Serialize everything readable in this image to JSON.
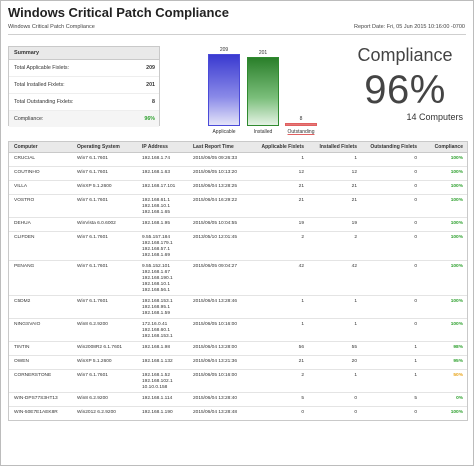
{
  "title": "Windows Critical Patch Compliance",
  "subtitle": "Windows Critical Patch Compliance",
  "report_date": "Report Date:  Fri, 05 Jun 2015 10:16:00 -0700",
  "summary": {
    "header": "Summary",
    "rows": [
      {
        "label": "Total Applicable Fixlets:",
        "value": "209"
      },
      {
        "label": "Total Installed Fixlets:",
        "value": "201"
      },
      {
        "label": "Total Outstanding Fixlets:",
        "value": "8"
      },
      {
        "label": "Compliance:",
        "value": "96%"
      }
    ]
  },
  "chart_data": {
    "type": "bar",
    "categories": [
      "Applicable",
      "Installed",
      "Outstanding"
    ],
    "values": [
      209,
      201,
      8
    ],
    "colors": [
      "#4a4ad8",
      "#2f8a2f",
      "#e06060"
    ],
    "title": "",
    "xlabel": "",
    "ylabel": "",
    "ylim": [
      0,
      209
    ]
  },
  "compliance": {
    "title": "Compliance",
    "value": "96%",
    "count": "14 Computers"
  },
  "table": {
    "headers": [
      "Computer",
      "Operating System",
      "IP Address",
      "Last Report Time",
      "Applicable Fixlets",
      "Installed Fixlets",
      "Outstanding Fixlets",
      "Compliance"
    ],
    "rows": [
      {
        "computer": "CRUCIAL",
        "os": "Win7 6.1.7601",
        "ip": [
          "192.168.1.74"
        ],
        "time": "2015/06/05 09:26:33",
        "applicable": "1",
        "installed": "1",
        "outstanding": "0",
        "compliance": "100%",
        "status": "green"
      },
      {
        "computer": "COUTINHO",
        "os": "Win7 6.1.7601",
        "ip": [
          "192.168.1.63"
        ],
        "time": "2015/06/05 10:13:20",
        "applicable": "12",
        "installed": "12",
        "outstanding": "0",
        "compliance": "100%",
        "status": "green"
      },
      {
        "computer": "VILLA",
        "os": "WinXP 5.1.2600",
        "ip": [
          "192.168.17.101"
        ],
        "time": "2015/06/04 13:28:25",
        "applicable": "21",
        "installed": "21",
        "outstanding": "0",
        "compliance": "100%",
        "status": "green"
      },
      {
        "computer": "VOSTRO",
        "os": "Win7 6.1.7601",
        "ip": [
          "192.168.61.1",
          "192.168.10.1",
          "192.168.1.65"
        ],
        "time": "2015/06/04 16:29:22",
        "applicable": "21",
        "installed": "21",
        "outstanding": "0",
        "compliance": "100%",
        "status": "green"
      },
      {
        "computer": "DEHUA",
        "os": "WinVista 6.0.6002",
        "ip": [
          "192.168.1.95"
        ],
        "time": "2015/06/05 10:04:55",
        "applicable": "19",
        "installed": "19",
        "outstanding": "0",
        "compliance": "100%",
        "status": "green"
      },
      {
        "computer": "CLIFDEN",
        "os": "Win7 6.1.7601",
        "ip": [
          "9.55.157.184",
          "192.168.179.1",
          "192.168.57.1",
          "192.168.1.69"
        ],
        "time": "2013/05/10 12:01:45",
        "applicable": "2",
        "installed": "2",
        "outstanding": "0",
        "compliance": "100%",
        "status": "green"
      },
      {
        "computer": "PENANG",
        "os": "Win7 6.1.7601",
        "ip": [
          "9.55.152.101",
          "192.168.1.67",
          "192.168.190.1",
          "192.168.10.1",
          "192.168.56.1"
        ],
        "time": "2015/06/05 09:04:27",
        "applicable": "42",
        "installed": "42",
        "outstanding": "0",
        "compliance": "100%",
        "status": "green"
      },
      {
        "computer": "C5DM2",
        "os": "Win7 6.1.7601",
        "ip": [
          "192.168.153.1",
          "192.168.95.1",
          "192.168.1.59"
        ],
        "time": "2015/06/04 13:28:46",
        "applicable": "1",
        "installed": "1",
        "outstanding": "0",
        "compliance": "100%",
        "status": "green"
      },
      {
        "computer": "NINGSVAIO",
        "os": "Win8 6.2.9200",
        "ip": [
          "172.16.0.41",
          "192.168.60.1",
          "192.168.153.1"
        ],
        "time": "2015/06/05 10:16:00",
        "applicable": "1",
        "installed": "1",
        "outstanding": "0",
        "compliance": "100%",
        "status": "green"
      },
      {
        "computer": "TINTIN",
        "os": "Win2008R2 6.1.7601",
        "ip": [
          "192.168.1.98"
        ],
        "time": "2015/06/04 13:28:00",
        "applicable": "56",
        "installed": "55",
        "outstanding": "1",
        "compliance": "98%",
        "status": "green"
      },
      {
        "computer": "OWEN",
        "os": "WinXP 5.1.2600",
        "ip": [
          "192.168.1.132"
        ],
        "time": "2015/06/04 13:21:36",
        "applicable": "21",
        "installed": "20",
        "outstanding": "1",
        "compliance": "95%",
        "status": "green"
      },
      {
        "computer": "CORNERSTONE",
        "os": "Win7 6.1.7601",
        "ip": [
          "192.168.1.52",
          "192.168.102.1",
          "10.10.0.158"
        ],
        "time": "2015/06/05 10:16:00",
        "applicable": "2",
        "installed": "1",
        "outstanding": "1",
        "compliance": "50%",
        "status": "yellow"
      },
      {
        "computer": "WIN-DPS77S3HT13",
        "os": "Win8 6.2.9200",
        "ip": [
          "192.168.1.114"
        ],
        "time": "2015/06/04 13:28:40",
        "applicable": "5",
        "installed": "0",
        "outstanding": "5",
        "compliance": "0%",
        "status": "green"
      },
      {
        "computer": "WIN-50E7E1AEK8R",
        "os": "Win2012 6.2.9200",
        "ip": [
          "192.168.1.190"
        ],
        "time": "2015/06/04 13:28:48",
        "applicable": "0",
        "installed": "0",
        "outstanding": "0",
        "compliance": "100%",
        "status": "green"
      }
    ]
  }
}
